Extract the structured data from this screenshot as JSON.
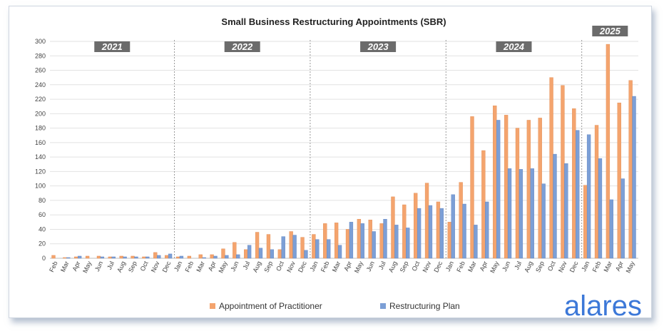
{
  "chart_data": {
    "type": "bar",
    "title": "Small Business Restructuring Appointments (SBR)",
    "ylim": [
      0,
      300
    ],
    "yticks": [
      0,
      20,
      40,
      60,
      80,
      100,
      120,
      140,
      160,
      180,
      200,
      220,
      240,
      260,
      280,
      300
    ],
    "grid": true,
    "legend_position": "bottom",
    "categories": [
      "Feb",
      "Mar",
      "Apr",
      "May",
      "Jun",
      "Jul",
      "Aug",
      "Sep",
      "Oct",
      "Nov",
      "Dec",
      "Jan",
      "Feb",
      "Mar",
      "Apr",
      "May",
      "Jun",
      "Jul",
      "Aug",
      "Sep",
      "Oct",
      "Nov",
      "Dec",
      "Jan",
      "Feb",
      "Mar",
      "Apr",
      "May",
      "Jun",
      "Jul",
      "Aug",
      "Sep",
      "Oct",
      "Nov",
      "Dec",
      "Jan",
      "Feb",
      "Mar",
      "Apr",
      "May",
      "Jun",
      "Jul",
      "Aug",
      "Sep",
      "Oct",
      "Nov",
      "Dec",
      "Jan",
      "Feb",
      "Mar",
      "Apr",
      "May"
    ],
    "series": [
      {
        "name": "Appointment of Practitioner",
        "color": "#f4a46e",
        "values": [
          4,
          1,
          2,
          3,
          3,
          2,
          3,
          3,
          2,
          8,
          4,
          2,
          3,
          5,
          5,
          13,
          22,
          12,
          36,
          33,
          12,
          37,
          29,
          33,
          48,
          49,
          40,
          54,
          53,
          48,
          85,
          74,
          90,
          104,
          78,
          50,
          105,
          196,
          149,
          211,
          198,
          180,
          191,
          194,
          250,
          239,
          207,
          101,
          184,
          296,
          215,
          246
        ]
      },
      {
        "name": "Restructuring Plan",
        "color": "#7c9fd6",
        "values": [
          0,
          1,
          3,
          0,
          2,
          2,
          2,
          2,
          2,
          4,
          6,
          3,
          0,
          1,
          3,
          4,
          5,
          18,
          14,
          12,
          30,
          32,
          11,
          26,
          26,
          18,
          50,
          48,
          37,
          54,
          46,
          42,
          69,
          73,
          69,
          88,
          75,
          46,
          78,
          191,
          124,
          123,
          124,
          103,
          144,
          131,
          177,
          171,
          138,
          81,
          110,
          224
        ]
      }
    ],
    "years": [
      {
        "label": "2021",
        "start": 0,
        "end": 10
      },
      {
        "label": "2022",
        "start": 11,
        "end": 22
      },
      {
        "label": "2023",
        "start": 23,
        "end": 34
      },
      {
        "label": "2024",
        "start": 35,
        "end": 46
      },
      {
        "label": "2025",
        "start": 47,
        "end": 51
      }
    ]
  },
  "brand": "alares"
}
